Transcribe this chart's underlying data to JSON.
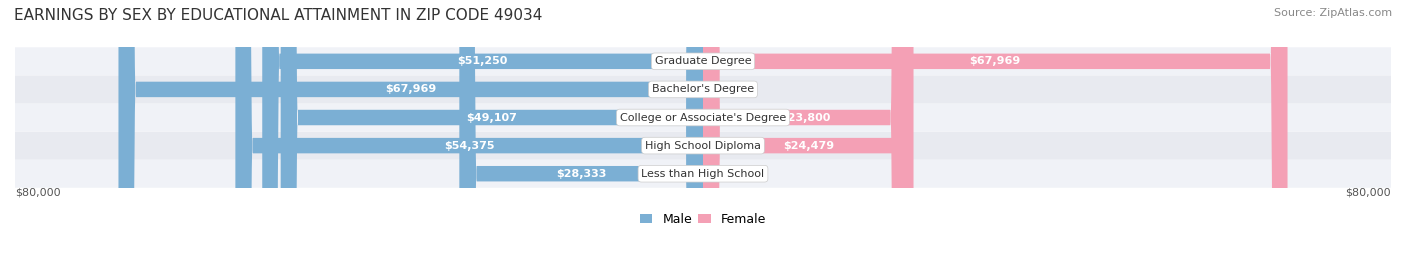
{
  "title": "EARNINGS BY SEX BY EDUCATIONAL ATTAINMENT IN ZIP CODE 49034",
  "source": "Source: ZipAtlas.com",
  "categories": [
    "Less than High School",
    "High School Diploma",
    "College or Associate's Degree",
    "Bachelor's Degree",
    "Graduate Degree"
  ],
  "male_values": [
    28333,
    54375,
    49107,
    67969,
    51250
  ],
  "female_values": [
    0,
    24479,
    23800,
    0,
    67969
  ],
  "male_color": "#7bafd4",
  "female_color": "#f4a0b5",
  "max_value": 80000,
  "bar_bg_color": "#e8eaf0",
  "row_bg_colors": [
    "#f0f2f7",
    "#e8eaf0"
  ],
  "label_color_male": "#ffffff",
  "label_color_female": "#ffffff",
  "label_color_zero": "#888888",
  "title_fontsize": 11,
  "source_fontsize": 8,
  "bar_label_fontsize": 8,
  "cat_label_fontsize": 8,
  "axis_label_fontsize": 8,
  "legend_fontsize": 9
}
